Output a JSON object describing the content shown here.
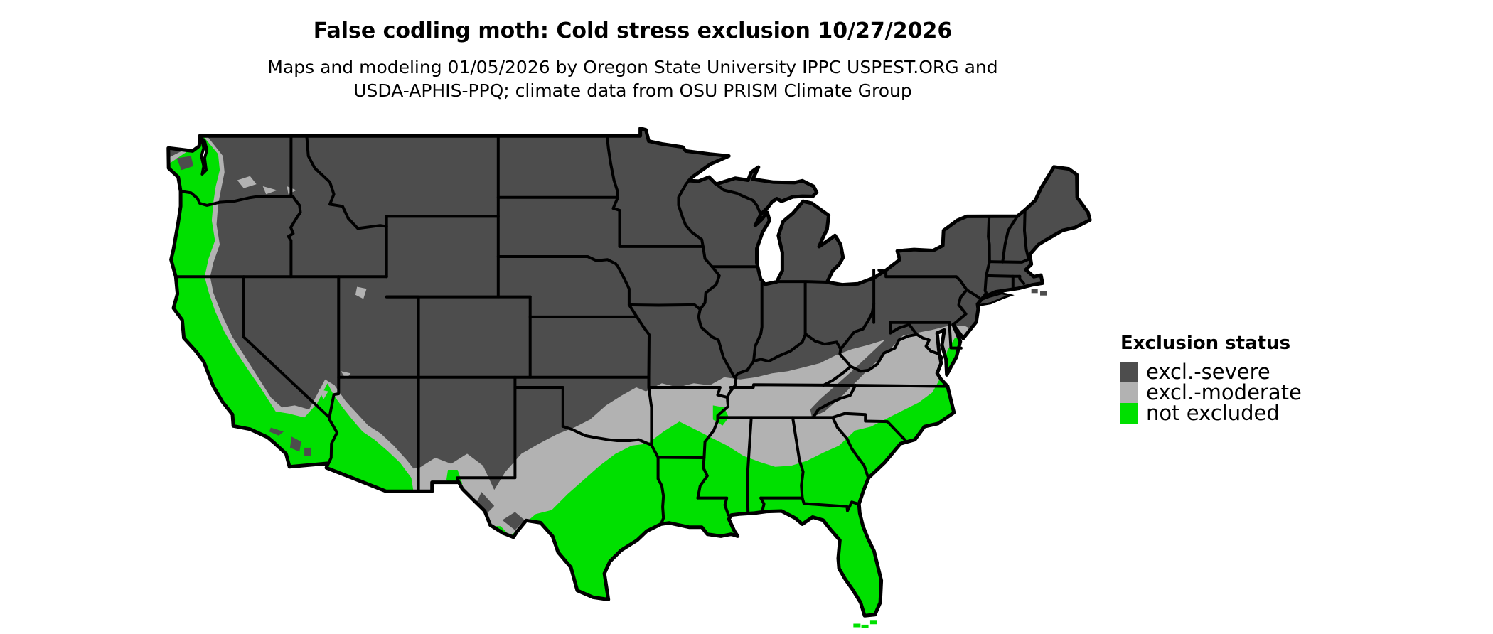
{
  "title": "False codling moth: Cold stress exclusion 10/27/2026",
  "subtitle": {
    "line1": "Maps and modeling 01/05/2026 by Oregon State University IPPC USPEST.ORG and",
    "line2": "USDA-APHIS-PPQ; climate data from OSU PRISM Climate Group"
  },
  "legend": {
    "title": "Exclusion status",
    "items": [
      {
        "id": "severe",
        "label": "excl.-severe",
        "color": "#4D4D4D"
      },
      {
        "id": "moderate",
        "label": "excl.-moderate",
        "color": "#B2B2B2"
      },
      {
        "id": "not_excluded",
        "label": "not excluded",
        "color": "#00E000"
      }
    ]
  },
  "map": {
    "region": "conterminous United States",
    "colors": {
      "severe": "#4D4D4D",
      "moderate": "#B2B2B2",
      "not_excluded": "#00E000",
      "border": "#000000",
      "water": "#FFFFFF"
    }
  }
}
